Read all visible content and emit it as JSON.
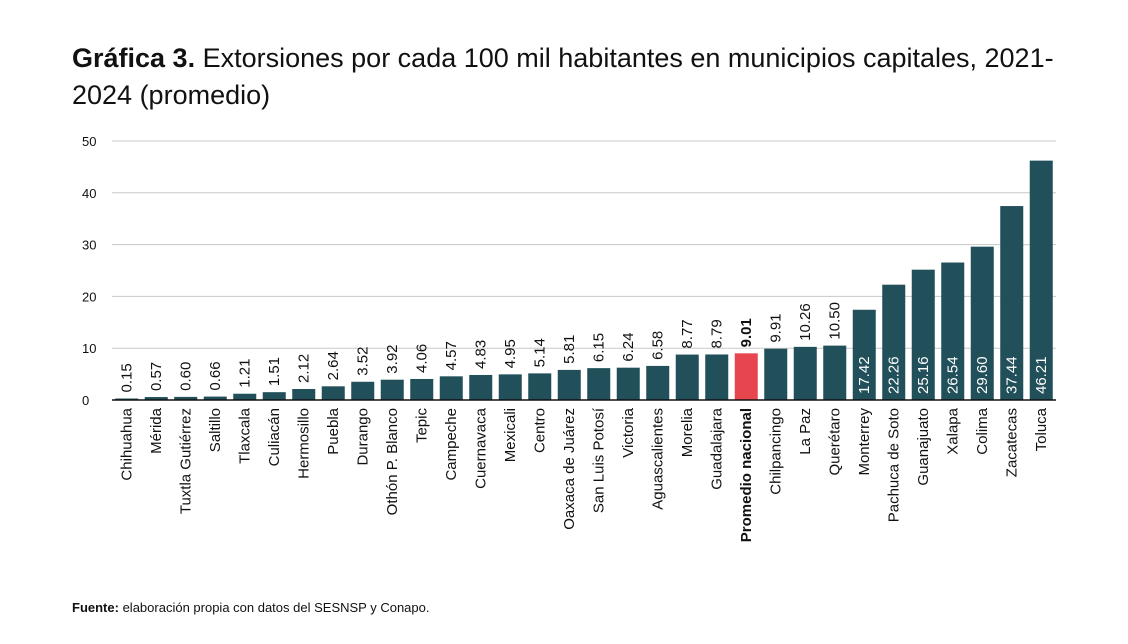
{
  "title": {
    "prefix": "Gráfica 3.",
    "text": "Extorsiones por cada 100 mil habitantes en municipios capitales, 2021-2024 (promedio)"
  },
  "source": {
    "label": "Fuente:",
    "text": "elaboración propia con datos del SESNSP y Conapo."
  },
  "colors": {
    "bar": "#214f5a",
    "highlight": "#e8464f",
    "grid": "#c8c8c8",
    "axis": "#111111"
  },
  "chart_data": {
    "type": "bar",
    "categories": [
      "Chihuahua",
      "Mérida",
      "Tuxtla Gutiérrez",
      "Saltillo",
      "Tlaxcala",
      "Culiacán",
      "Hermosillo",
      "Puebla",
      "Durango",
      "Othón P. Blanco",
      "Tepic",
      "Campeche",
      "Cuernavaca",
      "Mexicali",
      "Centro",
      "Oaxaca de Juárez",
      "San Luis Potosí",
      "Victoria",
      "Aguascalientes",
      "Morelia",
      "Guadalajara",
      "Promedio nacional",
      "Chilpancingo",
      "La Paz",
      "Querétaro",
      "Monterrey",
      "Pachuca de Soto",
      "Guanajuato",
      "Xalapa",
      "Colima",
      "Zacatecas",
      "Toluca"
    ],
    "values": [
      0.15,
      0.57,
      0.6,
      0.66,
      1.21,
      1.51,
      2.12,
      2.64,
      3.52,
      3.92,
      4.06,
      4.57,
      4.83,
      4.95,
      5.14,
      5.81,
      6.15,
      6.24,
      6.58,
      8.77,
      8.79,
      9.01,
      9.91,
      10.26,
      10.5,
      17.42,
      22.26,
      25.16,
      26.54,
      29.6,
      37.44,
      46.21
    ],
    "value_labels": [
      "0.15",
      "0.57",
      "0.60",
      "0.66",
      "1.21",
      "1.51",
      "2.12",
      "2.64",
      "3.52",
      "3.92",
      "4.06",
      "4.57",
      "4.83",
      "4.95",
      "5.14",
      "5.81",
      "6.15",
      "6.24",
      "6.58",
      "8.77",
      "8.79",
      "9.01",
      "9.91",
      "10.26",
      "10.50",
      "17.42",
      "22.26",
      "25.16",
      "26.54",
      "29.60",
      "37.44",
      "46.21"
    ],
    "highlight_category": "Promedio nacional",
    "yticks": [
      "0",
      "10",
      "20",
      "30",
      "40",
      "50"
    ],
    "ylim": [
      0,
      50
    ],
    "grid": true,
    "xlabel": "",
    "ylabel": ""
  }
}
